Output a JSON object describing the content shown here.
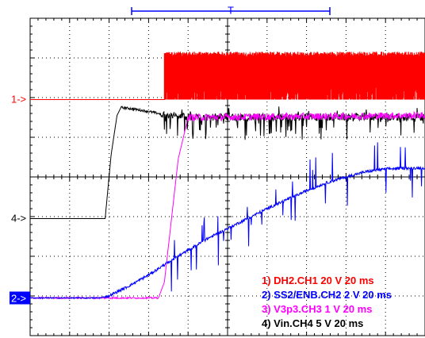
{
  "scope": {
    "colors": {
      "grid": "#000000",
      "background": "#ffffff",
      "ch1": "#ff0000",
      "ch2": "#0000ff",
      "ch3": "#ff00ff",
      "ch4": "#000000",
      "ch2_marker_bg": "#0000ff",
      "ch2_marker_text": "#ffffff",
      "trigger_bar": "#0000ff"
    },
    "trigger_label": "T",
    "markers": [
      {
        "id": "ch1",
        "label": "1->"
      },
      {
        "id": "ch4",
        "label": "4->"
      },
      {
        "id": "ch2",
        "label": "2->"
      }
    ],
    "legend": [
      {
        "id": "ch1",
        "text": "1) DH2.CH1  20  V    20 ms"
      },
      {
        "id": "ch2",
        "text": "2) SS2/ENB.CH2  2  V    20 ms"
      },
      {
        "id": "ch3",
        "text": "3) V3p3.CH3  1  V    20 ms"
      },
      {
        "id": "ch4",
        "text": "4) Vin.CH4  5  V    20 ms"
      }
    ]
  },
  "chart_data": {
    "type": "line",
    "title": "",
    "xlabel": "",
    "ylabel": "",
    "grid": true,
    "divisions": {
      "x": 10,
      "y": 8
    },
    "xlim": [
      0,
      200
    ],
    "x_unit": "ms",
    "legend_position": "bottom-right",
    "series": [
      {
        "name": "DH2.CH1",
        "scale": "20 V/div",
        "ground_marker_div": 5.95,
        "shape": "flat at ground until switching starts, then a dense pulse train between ground and about +1 div",
        "switching_start_ms": 68,
        "switching_high_div": 1.15,
        "x": [
          0,
          68
        ],
        "y_div": [
          0,
          0
        ]
      },
      {
        "name": "SS2/ENB.CH2",
        "scale": "2 V/div",
        "ground_marker_div": 0.95,
        "shape": "slow soft-start ramp with spikes after switching starts",
        "x": [
          0,
          35,
          40,
          50,
          60,
          70,
          80,
          90,
          100,
          110,
          120,
          130,
          140,
          150,
          160,
          170,
          180,
          190,
          200
        ],
        "y_div": [
          0,
          0,
          0.05,
          0.3,
          0.58,
          0.9,
          1.2,
          1.5,
          1.75,
          2.0,
          2.25,
          2.48,
          2.7,
          2.9,
          3.05,
          3.18,
          3.25,
          3.27,
          3.28
        ]
      },
      {
        "name": "V3p3.CH3",
        "scale": "1 V/div",
        "ground_marker_div": 0.95,
        "shape": "rises after switching starts and settles with high-frequency ripple",
        "x": [
          0,
          65,
          68,
          75,
          80,
          200
        ],
        "y_div": [
          0,
          0,
          0.4,
          3.5,
          4.55,
          4.6
        ]
      },
      {
        "name": "Vin.CH4",
        "scale": "5 V/div",
        "ground_marker_div": 2.95,
        "shape": "input steps up, overshoots slightly, then settles with noise",
        "x": [
          0,
          38,
          41,
          44,
          46,
          50,
          60,
          70,
          80,
          200
        ],
        "y_div": [
          0,
          0,
          1.6,
          2.6,
          2.8,
          2.78,
          2.7,
          2.6,
          2.56,
          2.55
        ]
      }
    ]
  }
}
